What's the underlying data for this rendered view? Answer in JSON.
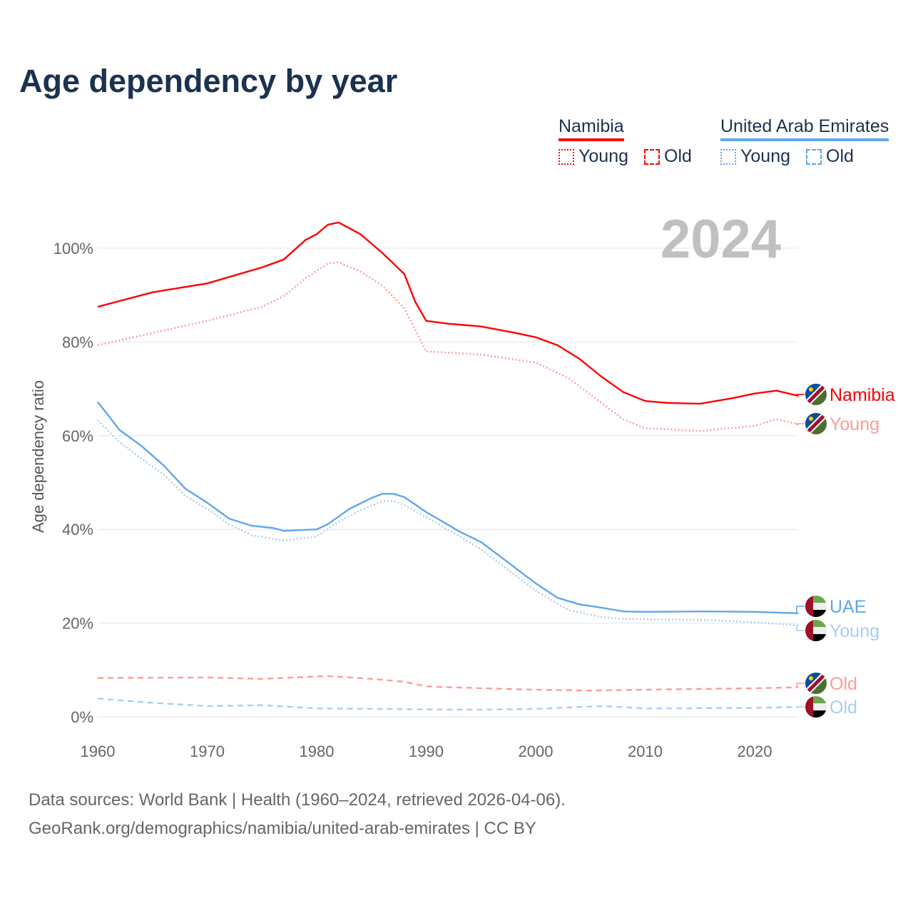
{
  "title": "Age dependency by year",
  "year_display": "2024",
  "legend": {
    "namibia": {
      "name": "Namibia",
      "young": "Young",
      "old": "Old",
      "color": "#ff0000"
    },
    "uae": {
      "name": "United Arab Emirates",
      "young": "Young",
      "old": "Old",
      "color": "#5fa6ea"
    }
  },
  "footer": {
    "line1": "Data sources: World Bank | Health (1960–2024, retrieved 2026-04-06).",
    "line2": "GeoRank.org/demographics/namibia/united-arab-emirates | CC BY"
  },
  "chart_data": {
    "type": "line",
    "title": "Age dependency by year",
    "xlabel": "",
    "ylabel": "Age dependency ratio",
    "xlim": [
      1960,
      2024
    ],
    "ylim": [
      0,
      110
    ],
    "x_ticks": [
      1960,
      1970,
      1980,
      1990,
      2000,
      2010,
      2020
    ],
    "y_ticks": [
      0,
      20,
      40,
      60,
      80,
      100
    ],
    "y_tick_labels": [
      "0%",
      "20%",
      "40%",
      "60%",
      "80%",
      "100%"
    ],
    "grid": true,
    "series": [
      {
        "name": "Namibia",
        "end_label": "Namibia",
        "color": "#ff0000",
        "style": "solid",
        "points": [
          [
            1960,
            87.5
          ],
          [
            1965,
            90.6
          ],
          [
            1970,
            92.5
          ],
          [
            1975,
            95.9
          ],
          [
            1977,
            97.6
          ],
          [
            1979,
            101.8
          ],
          [
            1980,
            103
          ],
          [
            1981,
            105
          ],
          [
            1982,
            105.5
          ],
          [
            1984,
            103
          ],
          [
            1986,
            99
          ],
          [
            1988,
            94.5
          ],
          [
            1989,
            88.6
          ],
          [
            1990,
            84.5
          ],
          [
            1992,
            83.9
          ],
          [
            1995,
            83.3
          ],
          [
            1998,
            82
          ],
          [
            2000,
            81
          ],
          [
            2002,
            79.3
          ],
          [
            2004,
            76.4
          ],
          [
            2006,
            72.6
          ],
          [
            2008,
            69.3
          ],
          [
            2010,
            67.4
          ],
          [
            2012,
            67
          ],
          [
            2015,
            66.8
          ],
          [
            2018,
            68
          ],
          [
            2020,
            69
          ],
          [
            2022,
            69.6
          ],
          [
            2024,
            68.5
          ]
        ]
      },
      {
        "name": "Namibia Young",
        "end_label": "Young",
        "color": "#ff9a9a",
        "style": "dotted",
        "points": [
          [
            1960,
            79.3
          ],
          [
            1970,
            84.5
          ],
          [
            1975,
            87.5
          ],
          [
            1977,
            89.8
          ],
          [
            1979,
            93.6
          ],
          [
            1981,
            96.7
          ],
          [
            1982,
            97
          ],
          [
            1984,
            95
          ],
          [
            1986,
            92
          ],
          [
            1988,
            87.2
          ],
          [
            1990,
            78
          ],
          [
            1995,
            77.3
          ],
          [
            2000,
            75.6
          ],
          [
            2003,
            72.3
          ],
          [
            2006,
            67
          ],
          [
            2008,
            63.5
          ],
          [
            2010,
            61.6
          ],
          [
            2015,
            61
          ],
          [
            2020,
            62.1
          ],
          [
            2022,
            63.5
          ],
          [
            2024,
            62.4
          ]
        ]
      },
      {
        "name": "Namibia Old",
        "end_label": "Old",
        "color": "#ff9a9a",
        "style": "dashed",
        "points": [
          [
            1960,
            8.3
          ],
          [
            1970,
            8.4
          ],
          [
            1975,
            8.1
          ],
          [
            1981,
            8.7
          ],
          [
            1985,
            8.1
          ],
          [
            1988,
            7.5
          ],
          [
            1990,
            6.5
          ],
          [
            1995,
            6.1
          ],
          [
            2000,
            5.8
          ],
          [
            2005,
            5.6
          ],
          [
            2010,
            5.8
          ],
          [
            2020,
            6.1
          ],
          [
            2024,
            6.3
          ]
        ]
      },
      {
        "name": "UAE",
        "end_label": "UAE",
        "color": "#5fa6ea",
        "style": "solid",
        "points": [
          [
            1960,
            67.2
          ],
          [
            1962,
            61.2
          ],
          [
            1964,
            57.8
          ],
          [
            1966,
            53.7
          ],
          [
            1968,
            48.7
          ],
          [
            1970,
            45.7
          ],
          [
            1972,
            42.3
          ],
          [
            1974,
            40.8
          ],
          [
            1976,
            40.3
          ],
          [
            1977,
            39.7
          ],
          [
            1980,
            40
          ],
          [
            1981,
            41.1
          ],
          [
            1983,
            44.4
          ],
          [
            1985,
            46.7
          ],
          [
            1986,
            47.6
          ],
          [
            1987,
            47.6
          ],
          [
            1988,
            46.9
          ],
          [
            1990,
            43.7
          ],
          [
            1993,
            39.6
          ],
          [
            1995,
            37.3
          ],
          [
            1997,
            33.8
          ],
          [
            2000,
            28.5
          ],
          [
            2002,
            25.4
          ],
          [
            2004,
            24
          ],
          [
            2006,
            23.3
          ],
          [
            2008,
            22.5
          ],
          [
            2010,
            22.4
          ],
          [
            2015,
            22.5
          ],
          [
            2020,
            22.4
          ],
          [
            2024,
            22.1
          ]
        ]
      },
      {
        "name": "UAE Young",
        "end_label": "Young",
        "color": "#a9cdf2",
        "style": "dotted",
        "points": [
          [
            1960,
            63.3
          ],
          [
            1962,
            58.6
          ],
          [
            1964,
            55.1
          ],
          [
            1966,
            51.8
          ],
          [
            1968,
            47.2
          ],
          [
            1970,
            44.4
          ],
          [
            1972,
            41.1
          ],
          [
            1974,
            38.8
          ],
          [
            1977,
            37.6
          ],
          [
            1980,
            38.5
          ],
          [
            1982,
            41.6
          ],
          [
            1984,
            44.1
          ],
          [
            1986,
            46
          ],
          [
            1987,
            46.1
          ],
          [
            1988,
            45.2
          ],
          [
            1990,
            42.6
          ],
          [
            1995,
            35.8
          ],
          [
            2000,
            26.9
          ],
          [
            2003,
            22.8
          ],
          [
            2006,
            21.3
          ],
          [
            2008,
            20.9
          ],
          [
            2015,
            20.7
          ],
          [
            2020,
            20.2
          ],
          [
            2024,
            19.5
          ]
        ]
      },
      {
        "name": "UAE Old",
        "end_label": "Old",
        "color": "#a9cdf2",
        "style": "dashed",
        "points": [
          [
            1960,
            3.9
          ],
          [
            1965,
            3
          ],
          [
            1970,
            2.3
          ],
          [
            1975,
            2.5
          ],
          [
            1980,
            1.8
          ],
          [
            1990,
            1.6
          ],
          [
            1995,
            1.5
          ],
          [
            2000,
            1.7
          ],
          [
            2006,
            2.3
          ],
          [
            2010,
            1.8
          ],
          [
            2020,
            1.9
          ],
          [
            2024,
            2.1
          ]
        ]
      }
    ]
  }
}
